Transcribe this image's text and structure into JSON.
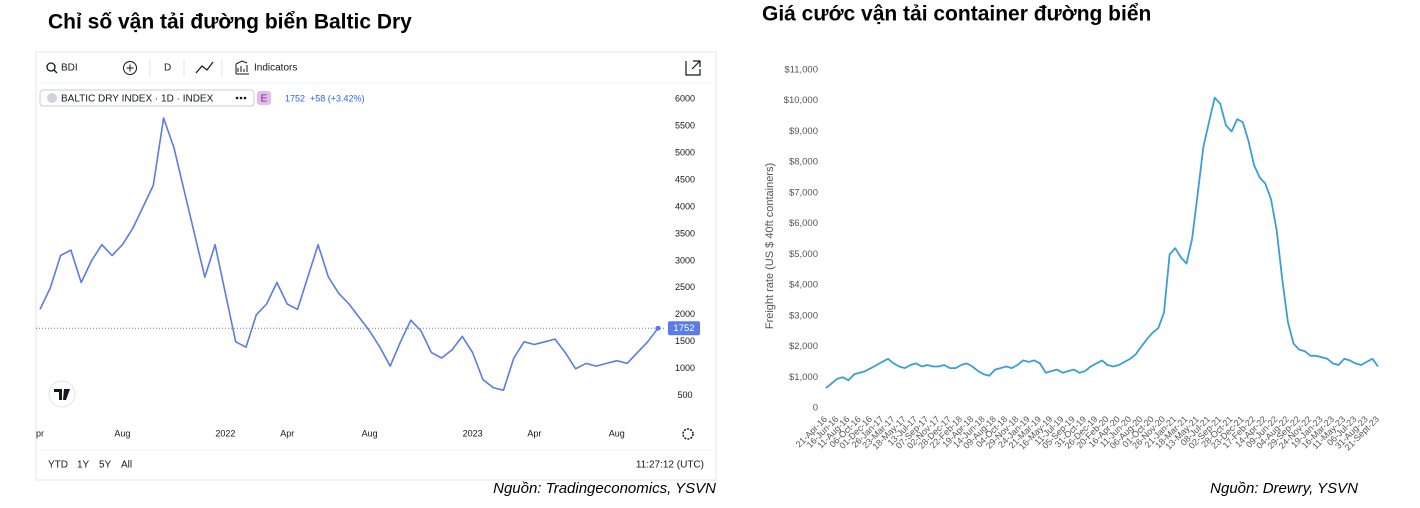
{
  "chart_data": [
    {
      "type": "line",
      "title": "Chỉ số vận tải đường biển Baltic Dry",
      "symbol": "BDI",
      "interval": "D",
      "indicators_label": "Indicators",
      "legend_title": "BALTIC DRY INDEX · 1D · INDEX",
      "exchange": "E",
      "change_label": "+58 (+3.42%)",
      "ranges": [
        "YTD",
        "1Y",
        "5Y",
        "All"
      ],
      "clock": "11:27:12 (UTC)",
      "source": "Nguồn: Tradingeconomics, YSVN",
      "color": "#5b7be8",
      "grid": false,
      "categories": [
        "pr",
        null,
        null,
        null,
        null,
        null,
        null,
        null,
        "Aug",
        null,
        null,
        null,
        null,
        null,
        null,
        null,
        null,
        null,
        "2022",
        null,
        null,
        null,
        null,
        null,
        "Apr",
        null,
        null,
        null,
        null,
        null,
        null,
        null,
        "Aug",
        null,
        null,
        null,
        null,
        null,
        null,
        null,
        null,
        null,
        "2023",
        null,
        null,
        null,
        null,
        null,
        "Apr",
        null,
        null,
        null,
        null,
        null,
        null,
        null,
        "Aug",
        null,
        null,
        null,
        null
      ],
      "values": [
        2100,
        2500,
        3100,
        3200,
        2600,
        3000,
        3300,
        3100,
        3300,
        3600,
        4000,
        4400,
        5650,
        5100,
        4300,
        3500,
        2700,
        3300,
        2400,
        1500,
        1400,
        2000,
        2200,
        2600,
        2200,
        2100,
        2700,
        3300,
        2700,
        2400,
        2200,
        1950,
        1700,
        1400,
        1050,
        1500,
        1900,
        1700,
        1300,
        1200,
        1350,
        1600,
        1300,
        800,
        650,
        600,
        1200,
        1500,
        1450,
        1500,
        1550,
        1300,
        1000,
        1100,
        1050,
        1100,
        1150,
        1100,
        1300,
        1500,
        1752
      ],
      "ylim": [
        50,
        6150
      ],
      "yticks": [
        500,
        1000,
        1500,
        2000,
        2500,
        3000,
        3500,
        4000,
        4500,
        5000,
        5500,
        6000
      ]
    },
    {
      "type": "line",
      "title": "Giá cước vận tải container đường biển",
      "ylabel": "Freight rate (US $ 40ft containers)",
      "source": "Nguồn: Drewry, YSVN",
      "color": "#3a9fd4",
      "grid": false,
      "categories": [
        "21-Apr-16",
        null,
        "16-Jun-16",
        null,
        "11-Aug-16",
        null,
        "06-Oct-16",
        null,
        "01-Dec-16",
        null,
        "26-Jan-17",
        null,
        "23-Mar-17",
        null,
        "18-May-17",
        null,
        "13-Jul-17",
        null,
        "07-Sep-17",
        null,
        "02-Nov-17",
        null,
        "28-Dec-17",
        null,
        "22-Feb-18",
        null,
        "19-Apr-18",
        null,
        "14-Jun-18",
        null,
        "09-Aug-18",
        null,
        "04-Oct-18",
        null,
        "29-Nov-18",
        null,
        "24-Jan-19",
        null,
        "21-Mar-19",
        null,
        "16-May-19",
        null,
        "11-Jul-19",
        null,
        "05-Sep-19",
        null,
        "31-Oct-19",
        null,
        "26-Dec-19",
        null,
        "20-Feb-20",
        null,
        "16-Apr-20",
        null,
        "11-Jun-20",
        null,
        "06-Aug-20",
        null,
        "01-Oct-20",
        null,
        "26-Nov-20",
        null,
        "21-Jan-21",
        null,
        "18-Mar-21",
        null,
        "13-May-21",
        null,
        "08-Jul-21",
        null,
        "02-Sep-21",
        null,
        "28-Oct-21",
        null,
        "23-Dec-21",
        null,
        "17-Feb-22",
        null,
        "14-Apr-22",
        null,
        "09-Jun-22",
        null,
        "04-Aug-22",
        null,
        "29-Sep-22",
        null,
        "24-Nov-22",
        null,
        "19-Jan-23",
        null,
        "16-Mar-23",
        null,
        "11-May-23",
        null,
        "06-Jul-23",
        null,
        "31-Aug-23",
        null,
        "21-Sept-23"
      ],
      "values": [
        650,
        800,
        950,
        1000,
        900,
        1100,
        1150,
        1200,
        1300,
        1400,
        1500,
        1600,
        1450,
        1350,
        1300,
        1400,
        1450,
        1350,
        1400,
        1350,
        1350,
        1400,
        1300,
        1300,
        1400,
        1450,
        1350,
        1200,
        1100,
        1050,
        1250,
        1300,
        1350,
        1300,
        1400,
        1550,
        1500,
        1550,
        1450,
        1150,
        1200,
        1250,
        1150,
        1200,
        1250,
        1150,
        1200,
        1350,
        1450,
        1550,
        1400,
        1350,
        1400,
        1500,
        1600,
        1750,
        2000,
        2250,
        2450,
        2600,
        3100,
        5000,
        5200,
        4900,
        4700,
        5500,
        7000,
        8500,
        9300,
        10100,
        9900,
        9200,
        9000,
        9400,
        9300,
        8700,
        7900,
        7500,
        7300,
        6800,
        5800,
        4200,
        2800,
        2100,
        1900,
        1850,
        1700,
        1700,
        1650,
        1600,
        1450,
        1400,
        1600,
        1550,
        1450,
        1400,
        1500,
        1600,
        1350
      ],
      "ylim": [
        0,
        11000
      ],
      "yticks": [
        0,
        {
          "value": 1000,
          "label": "$1,000"
        },
        {
          "value": 2000,
          "label": "$2,000"
        },
        {
          "value": 3000,
          "label": "$3,000"
        },
        {
          "value": 4000,
          "label": "$4,000"
        },
        {
          "value": 5000,
          "label": "$5,000"
        },
        {
          "value": 6000,
          "label": "$6,000"
        },
        {
          "value": 7000,
          "label": "$7,000"
        },
        {
          "value": 8000,
          "label": "$8,000"
        },
        {
          "value": 9000,
          "label": "$9,000"
        },
        {
          "value": 10000,
          "label": "$10,000"
        },
        {
          "value": 11000,
          "label": "$11,000"
        }
      ]
    }
  ]
}
